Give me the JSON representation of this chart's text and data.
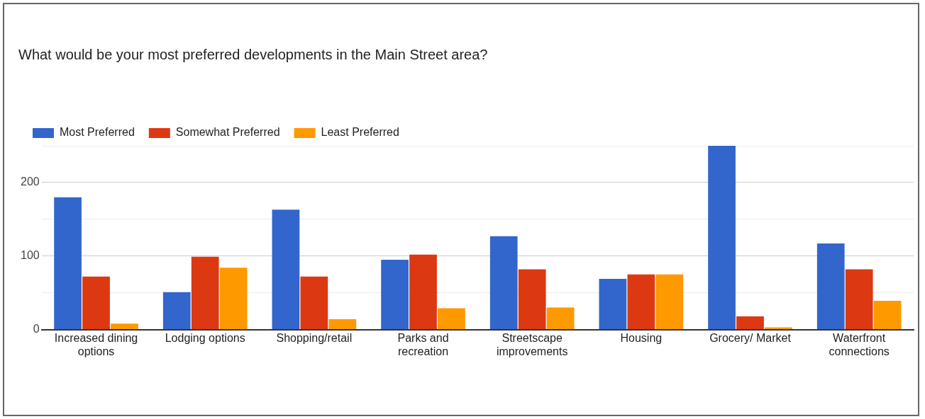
{
  "chart_data": {
    "type": "bar",
    "title": "What would be your most preferred developments in the Main Street area?",
    "categories": [
      "Increased dining options",
      "Lodging options",
      "Shopping/retail",
      "Parks and recreation",
      "Streetscape improvements",
      "Housing",
      "Grocery/ Market",
      "Waterfront connections"
    ],
    "series": [
      {
        "name": "Most Preferred",
        "color": "#3366cc",
        "values": [
          180,
          51,
          163,
          95,
          127,
          69,
          250,
          117
        ]
      },
      {
        "name": "Somewhat Preferred",
        "color": "#dc3912",
        "values": [
          72,
          99,
          72,
          102,
          82,
          75,
          18,
          82
        ]
      },
      {
        "name": "Least Preferred",
        "color": "#ff9900",
        "values": [
          8,
          84,
          14,
          29,
          30,
          75,
          3,
          39
        ]
      }
    ],
    "ylim": [
      0,
      250
    ],
    "yticks": [
      0,
      {
        "value": 50,
        "label": null
      },
      100,
      {
        "value": 150,
        "label": null
      },
      200,
      {
        "value": 250,
        "label": null
      }
    ],
    "grid": "y",
    "legend": "top left"
  }
}
